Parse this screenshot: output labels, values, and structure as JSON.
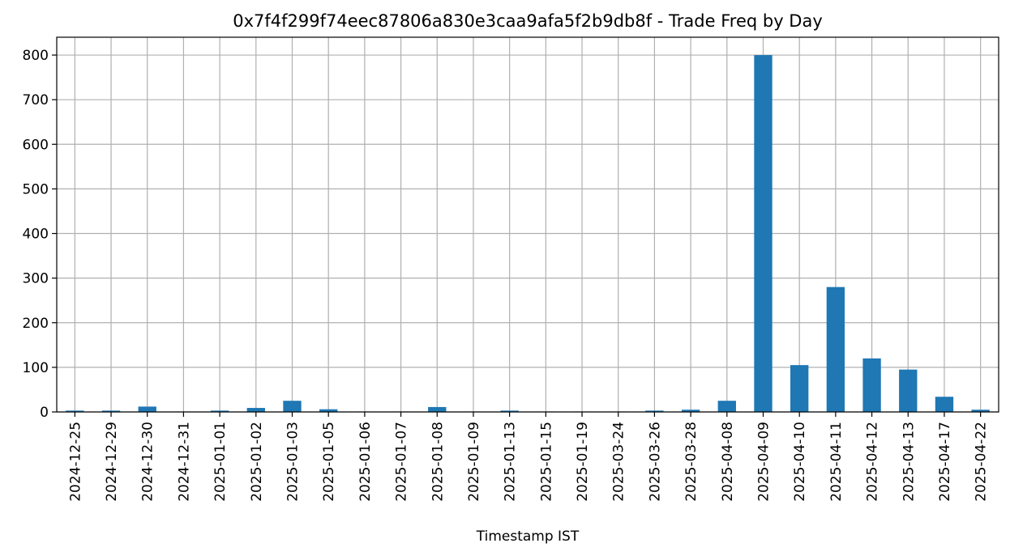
{
  "colors": {
    "bar": "#1f77b4",
    "grid": "#b0b0b0",
    "axis": "#000000"
  },
  "chart_data": {
    "type": "bar",
    "title": "0x7f4f299f74eec87806a830e3caa9afa5f2b9db8f - Trade Freq by Day",
    "xlabel": "Timestamp IST",
    "ylabel": "",
    "ylim": [
      0,
      840
    ],
    "yticks": [
      0,
      100,
      200,
      300,
      400,
      500,
      600,
      700,
      800
    ],
    "grid": true,
    "legend": false,
    "categories": [
      "2024-12-25",
      "2024-12-29",
      "2024-12-30",
      "2024-12-31",
      "2025-01-01",
      "2025-01-02",
      "2025-01-03",
      "2025-01-05",
      "2025-01-06",
      "2025-01-07",
      "2025-01-08",
      "2025-01-09",
      "2025-01-13",
      "2025-01-15",
      "2025-01-19",
      "2025-03-24",
      "2025-03-26",
      "2025-03-28",
      "2025-04-08",
      "2025-04-09",
      "2025-04-10",
      "2025-04-11",
      "2025-04-12",
      "2025-04-13",
      "2025-04-17",
      "2025-04-22"
    ],
    "values": [
      3,
      3,
      12,
      1,
      3,
      9,
      25,
      6,
      1,
      1,
      11,
      1,
      3,
      1,
      1,
      1,
      3,
      5,
      25,
      800,
      105,
      280,
      120,
      95,
      34,
      5
    ]
  }
}
